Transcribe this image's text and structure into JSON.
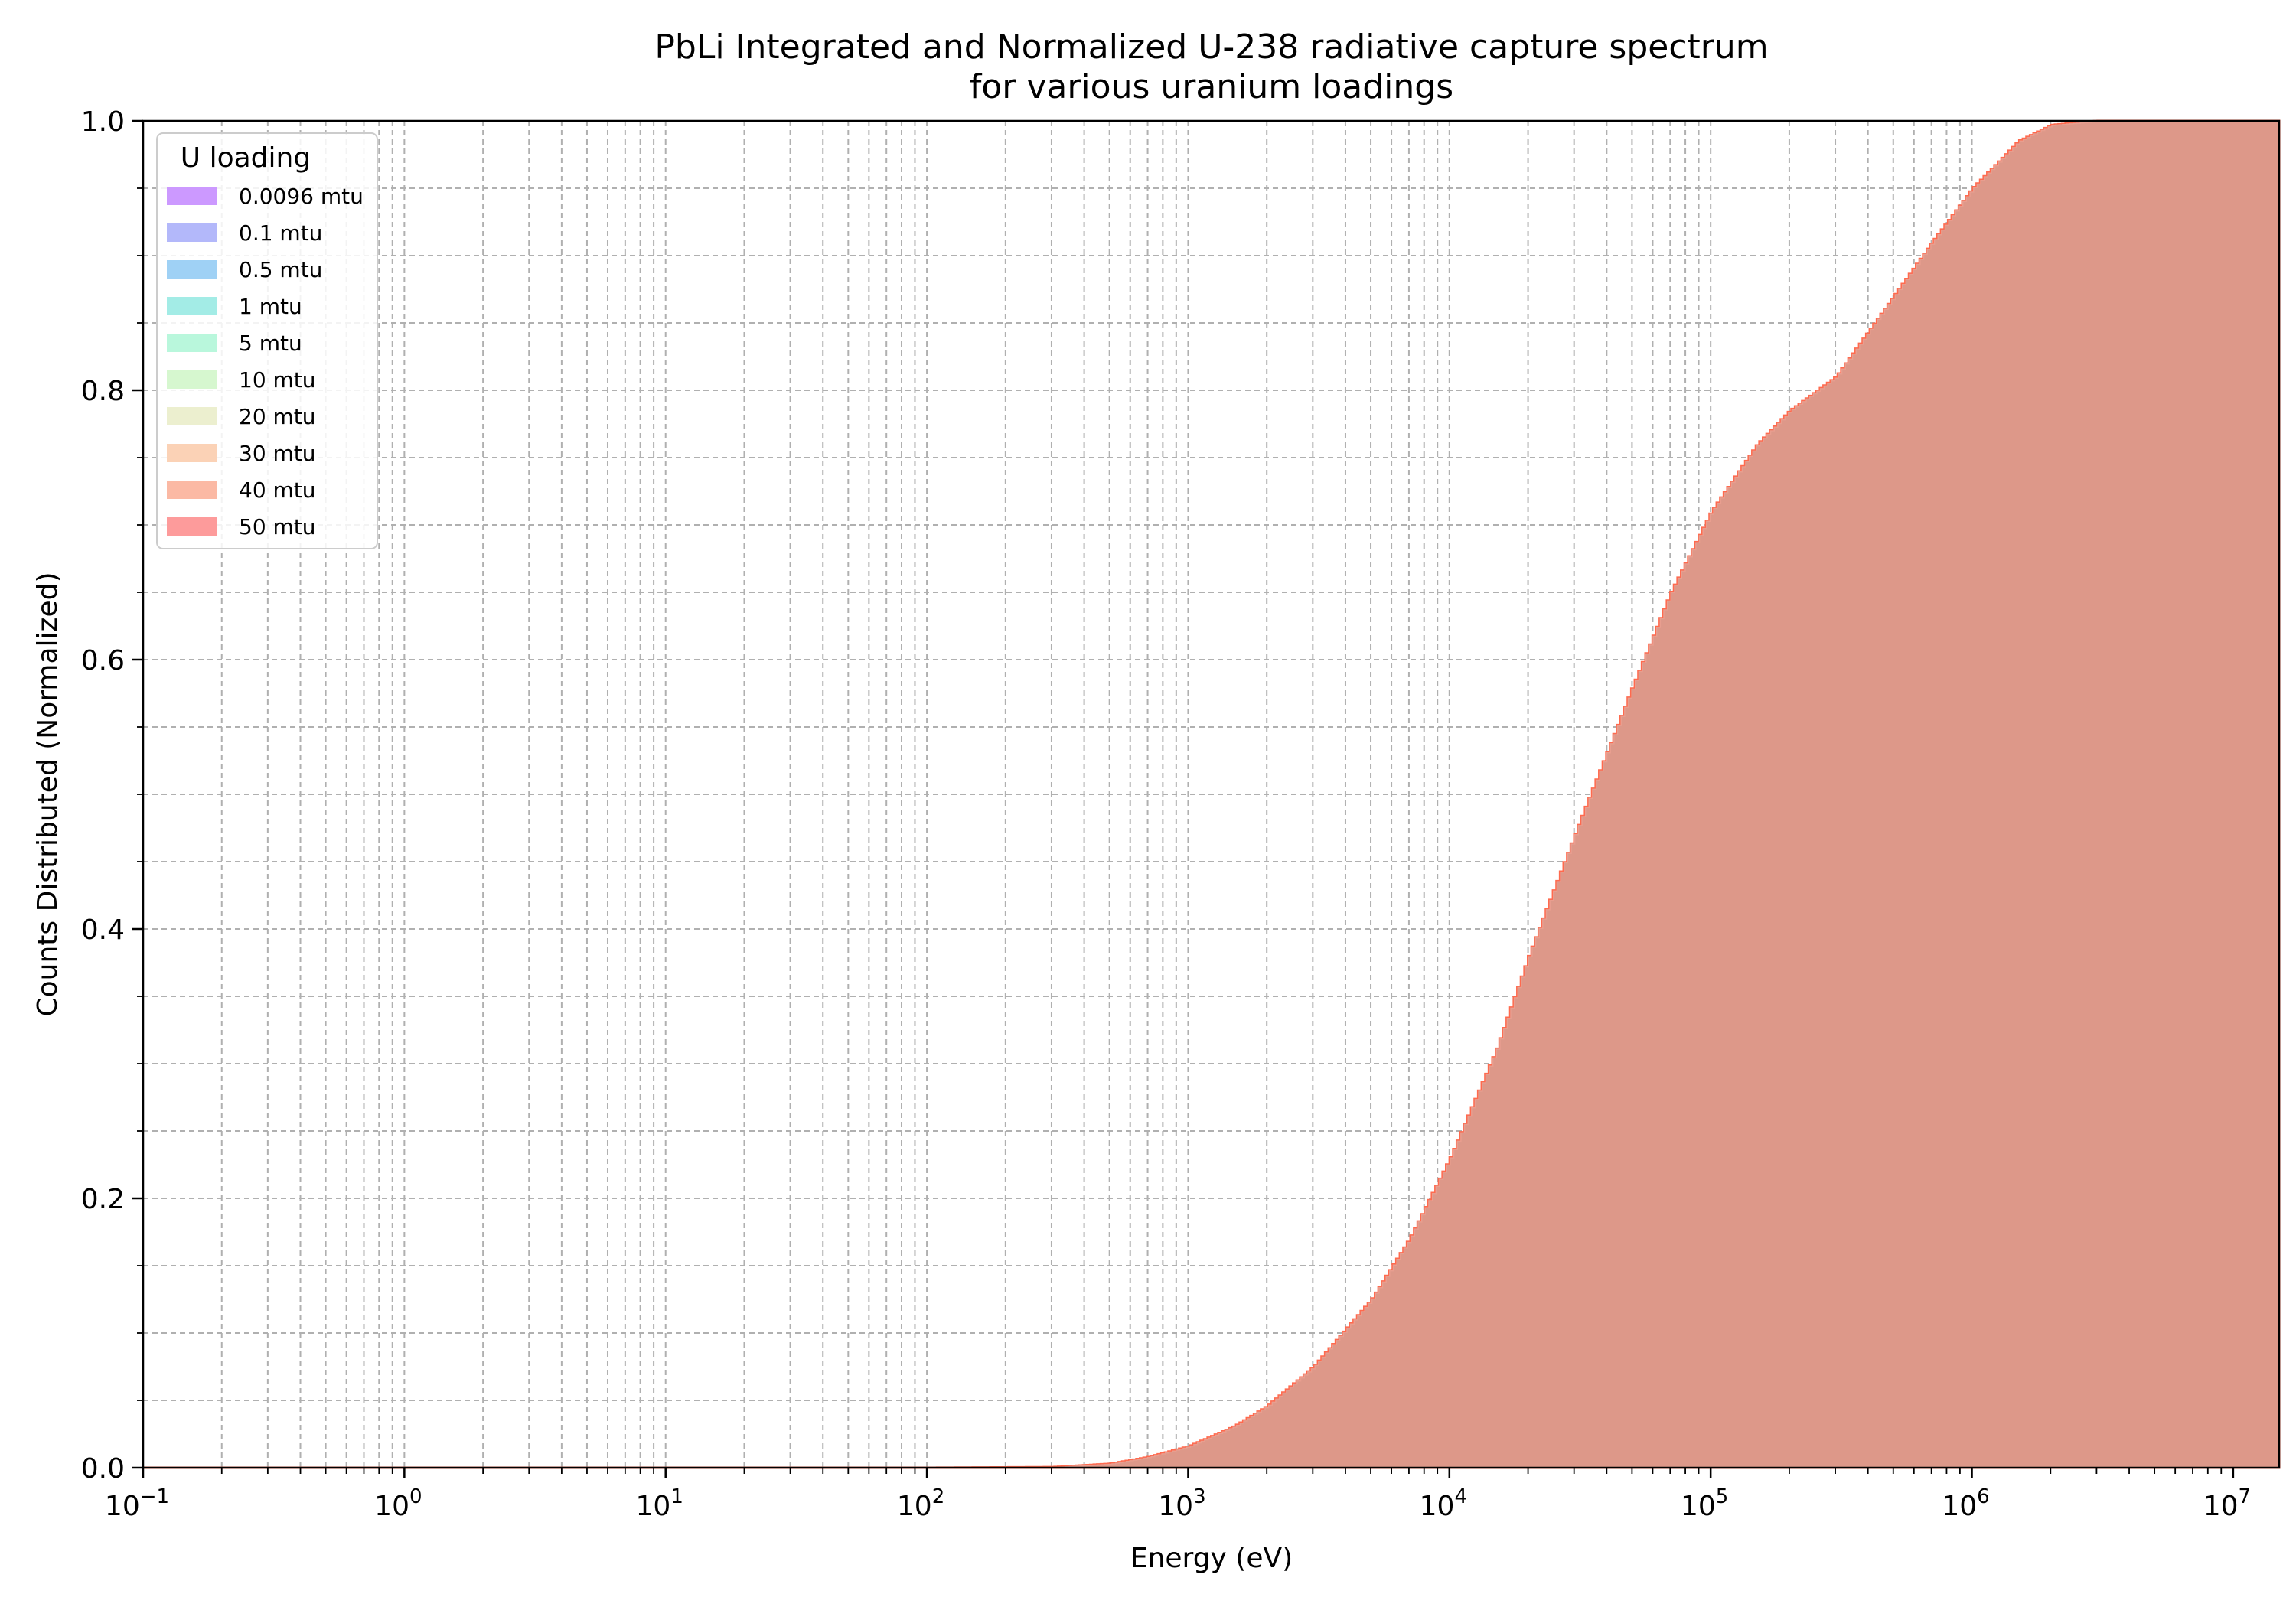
{
  "chart_data": {
    "type": "area",
    "title": "PbLi Integrated and Normalized U-238 radiative capture spectrum",
    "subtitle": "for various uranium loadings",
    "xlabel": "Energy (eV)",
    "ylabel": "Counts Distributed (Normalized)",
    "xscale": "log",
    "xlim": [
      0.1,
      15000000
    ],
    "ylim": [
      0,
      1.0
    ],
    "grid": true,
    "x_ticks": [
      {
        "base": "10",
        "exp": "−1",
        "value": 0.1
      },
      {
        "base": "10",
        "exp": "0",
        "value": 1
      },
      {
        "base": "10",
        "exp": "1",
        "value": 10
      },
      {
        "base": "10",
        "exp": "2",
        "value": 100
      },
      {
        "base": "10",
        "exp": "3",
        "value": 1000
      },
      {
        "base": "10",
        "exp": "4",
        "value": 10000
      },
      {
        "base": "10",
        "exp": "5",
        "value": 100000
      },
      {
        "base": "10",
        "exp": "6",
        "value": 1000000
      },
      {
        "base": "10",
        "exp": "7",
        "value": 10000000
      }
    ],
    "y_ticks": [
      "0.0",
      "0.2",
      "0.4",
      "0.6",
      "0.8",
      "1.0"
    ],
    "legend": {
      "title": "U loading",
      "placement": "upper-left"
    },
    "x": [
      0.1,
      100,
      300,
      500,
      700,
      1000,
      1500,
      2000,
      3000,
      5000,
      7000,
      10000,
      15000,
      20000,
      30000,
      50000,
      70000,
      100000,
      150000,
      200000,
      300000,
      500000,
      700000,
      1000000,
      1500000,
      2000000,
      3000000,
      5000000,
      10000000,
      15000000
    ],
    "series": [
      {
        "name": "0.0096 mtu",
        "color": "#cc99ff",
        "values": [
          0,
          0,
          0.0005,
          0.003,
          0.008,
          0.016,
          0.031,
          0.046,
          0.075,
          0.125,
          0.17,
          0.23,
          0.31,
          0.38,
          0.47,
          0.58,
          0.65,
          0.71,
          0.76,
          0.785,
          0.81,
          0.87,
          0.91,
          0.95,
          0.985,
          0.997,
          1.0,
          1.0,
          1.0,
          1.0
        ]
      },
      {
        "name": "0.1 mtu",
        "color": "#b3b8fa",
        "values": [
          0,
          0,
          0.0005,
          0.003,
          0.008,
          0.016,
          0.031,
          0.046,
          0.075,
          0.125,
          0.17,
          0.23,
          0.31,
          0.38,
          0.47,
          0.58,
          0.65,
          0.71,
          0.76,
          0.785,
          0.81,
          0.87,
          0.91,
          0.95,
          0.985,
          0.997,
          1.0,
          1.0,
          1.0,
          1.0
        ]
      },
      {
        "name": "0.5 mtu",
        "color": "#9fd1f5",
        "values": [
          0,
          0,
          0.0005,
          0.003,
          0.008,
          0.016,
          0.031,
          0.046,
          0.075,
          0.125,
          0.17,
          0.23,
          0.31,
          0.38,
          0.47,
          0.58,
          0.65,
          0.71,
          0.76,
          0.785,
          0.81,
          0.87,
          0.91,
          0.95,
          0.985,
          0.997,
          1.0,
          1.0,
          1.0,
          1.0
        ]
      },
      {
        "name": "1 mtu",
        "color": "#a3ece6",
        "values": [
          0,
          0,
          0.0005,
          0.003,
          0.008,
          0.016,
          0.031,
          0.046,
          0.075,
          0.125,
          0.17,
          0.23,
          0.31,
          0.38,
          0.47,
          0.58,
          0.65,
          0.71,
          0.76,
          0.785,
          0.81,
          0.87,
          0.91,
          0.95,
          0.985,
          0.997,
          1.0,
          1.0,
          1.0,
          1.0
        ]
      },
      {
        "name": "5 mtu",
        "color": "#b9f7dc",
        "values": [
          0,
          0,
          0.0005,
          0.003,
          0.008,
          0.016,
          0.031,
          0.046,
          0.075,
          0.125,
          0.17,
          0.23,
          0.31,
          0.38,
          0.47,
          0.58,
          0.65,
          0.71,
          0.76,
          0.785,
          0.81,
          0.87,
          0.91,
          0.95,
          0.985,
          0.997,
          1.0,
          1.0,
          1.0,
          1.0
        ]
      },
      {
        "name": "10 mtu",
        "color": "#d6f7cf",
        "values": [
          0,
          0,
          0.0005,
          0.003,
          0.008,
          0.016,
          0.031,
          0.046,
          0.075,
          0.125,
          0.17,
          0.23,
          0.31,
          0.38,
          0.47,
          0.58,
          0.65,
          0.71,
          0.76,
          0.785,
          0.81,
          0.87,
          0.91,
          0.95,
          0.985,
          0.997,
          1.0,
          1.0,
          1.0,
          1.0
        ]
      },
      {
        "name": "20 mtu",
        "color": "#ecefcf",
        "values": [
          0,
          0,
          0.0005,
          0.003,
          0.008,
          0.016,
          0.031,
          0.046,
          0.075,
          0.125,
          0.17,
          0.23,
          0.31,
          0.38,
          0.47,
          0.58,
          0.65,
          0.71,
          0.76,
          0.785,
          0.81,
          0.87,
          0.91,
          0.95,
          0.985,
          0.997,
          1.0,
          1.0,
          1.0,
          1.0
        ]
      },
      {
        "name": "30 mtu",
        "color": "#fbd2b6",
        "values": [
          0,
          0,
          0.0005,
          0.003,
          0.008,
          0.016,
          0.031,
          0.046,
          0.075,
          0.125,
          0.17,
          0.23,
          0.31,
          0.38,
          0.47,
          0.58,
          0.65,
          0.71,
          0.76,
          0.785,
          0.81,
          0.87,
          0.91,
          0.95,
          0.985,
          0.997,
          1.0,
          1.0,
          1.0,
          1.0
        ]
      },
      {
        "name": "40 mtu",
        "color": "#fbb9a4",
        "values": [
          0,
          0,
          0.0005,
          0.003,
          0.008,
          0.016,
          0.031,
          0.046,
          0.075,
          0.125,
          0.17,
          0.23,
          0.31,
          0.38,
          0.47,
          0.58,
          0.65,
          0.71,
          0.76,
          0.785,
          0.81,
          0.87,
          0.91,
          0.95,
          0.985,
          0.997,
          1.0,
          1.0,
          1.0,
          1.0
        ]
      },
      {
        "name": "50 mtu",
        "color": "#fd9b9b",
        "values": [
          0,
          0,
          0.0005,
          0.003,
          0.008,
          0.016,
          0.031,
          0.046,
          0.075,
          0.125,
          0.17,
          0.23,
          0.31,
          0.38,
          0.47,
          0.58,
          0.65,
          0.71,
          0.76,
          0.785,
          0.81,
          0.87,
          0.91,
          0.95,
          0.985,
          0.997,
          1.0,
          1.0,
          1.0,
          1.0
        ]
      }
    ],
    "overlap_fill_color": "#e55c3c",
    "overlap_edge_color": "#ff6a4e"
  }
}
